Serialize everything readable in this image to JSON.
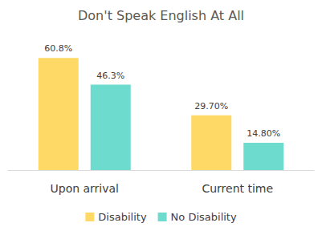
{
  "chart_data": {
    "type": "bar",
    "title": "Don't Speak English At All",
    "categories": [
      "Upon arrival",
      "Current time"
    ],
    "series": [
      {
        "name": "Disability",
        "color": "#FFD966",
        "values": [
          60.8,
          29.7
        ],
        "value_labels": [
          "60.8%",
          "29.70%"
        ]
      },
      {
        "name": "No Disability",
        "color": "#6EDBCF",
        "values": [
          46.3,
          14.8
        ],
        "value_labels": [
          "46.3%",
          "14.80%"
        ]
      }
    ],
    "ylim": [
      0,
      70
    ],
    "grid": false,
    "legend": "bottom",
    "data_labels": true,
    "tick_labels": "x"
  }
}
